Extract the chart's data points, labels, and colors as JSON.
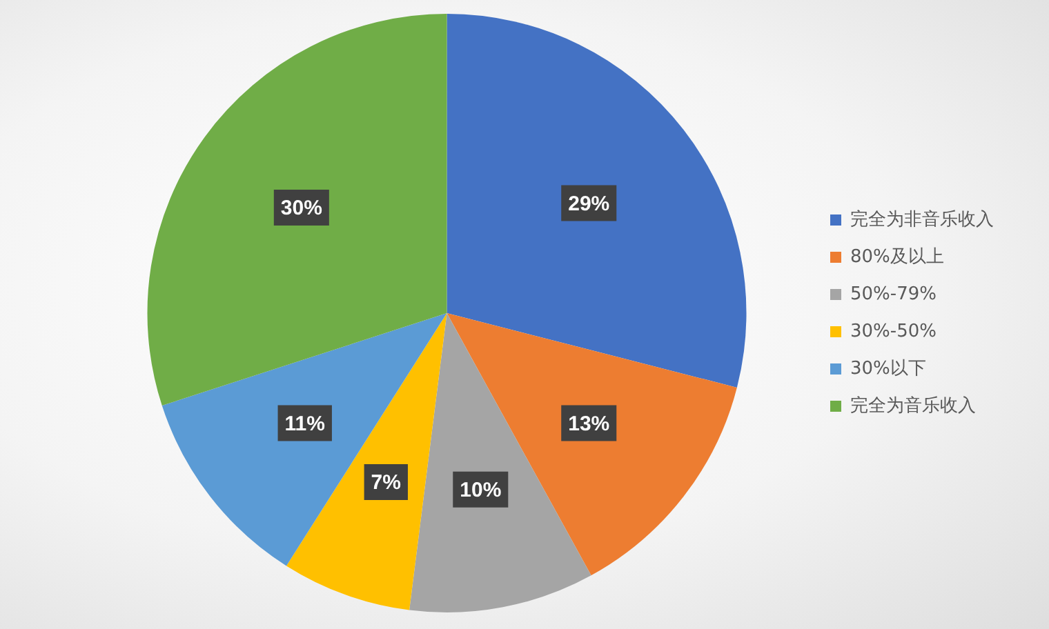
{
  "chart_data": {
    "type": "pie",
    "categories": [
      "完全为非音乐收入",
      "80%及以上",
      "50%-79%",
      "30%-50%",
      "30%以下",
      "完全为音乐收入"
    ],
    "values": [
      29,
      13,
      10,
      7,
      11,
      30
    ],
    "colors": [
      "#4472c4",
      "#ed7d31",
      "#a5a5a5",
      "#ffc000",
      "#5b9bd5",
      "#70ad47"
    ],
    "value_labels": [
      "29%",
      "13%",
      "10%",
      "7%",
      "11%",
      "30%"
    ],
    "legend": "right"
  }
}
